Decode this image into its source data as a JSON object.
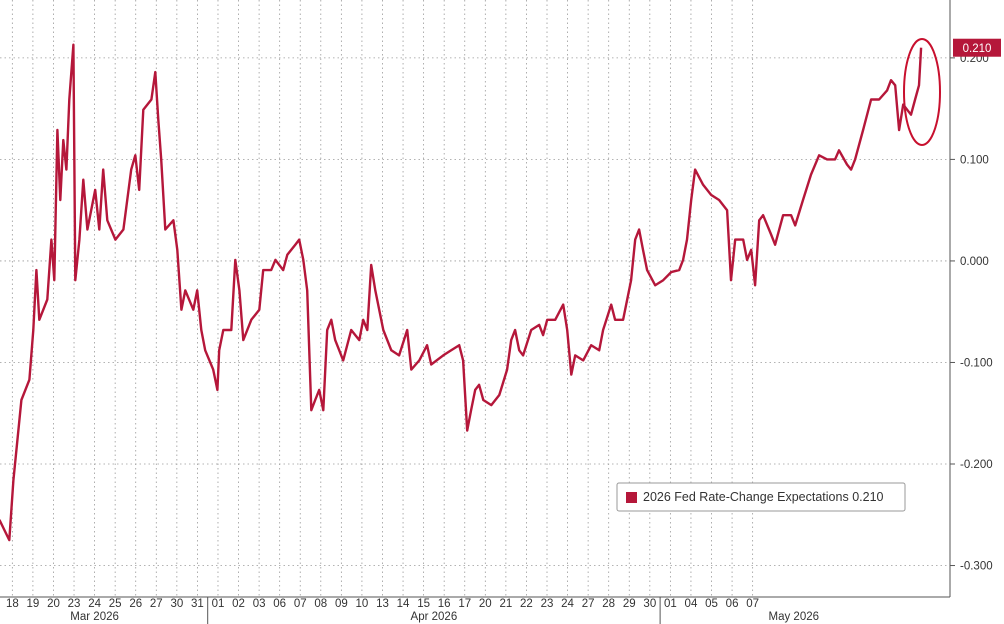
{
  "chart_data": {
    "type": "line",
    "series": [
      {
        "name": "2026 Fed Rate-Change Expectations",
        "color": "#b5173a",
        "x": [
          -0.63,
          -0.15,
          0.05,
          0.44,
          0.83,
          1.02,
          1.17,
          1.31,
          1.7,
          1.9,
          2.04,
          2.19,
          2.33,
          2.48,
          2.63,
          2.77,
          2.97,
          3.06,
          3.26,
          3.45,
          3.65,
          4.03,
          4.23,
          4.42,
          4.62,
          5.01,
          5.4,
          5.78,
          5.98,
          6.17,
          6.37,
          6.76,
          6.95,
          7.1,
          7.24,
          7.44,
          7.83,
          8.02,
          8.22,
          8.41,
          8.8,
          8.99,
          9.19,
          9.38,
          9.77,
          9.97,
          10.06,
          10.26,
          10.65,
          10.84,
          11.04,
          11.23,
          11.62,
          12.01,
          12.2,
          12.59,
          12.79,
          13.17,
          13.37,
          13.76,
          13.95,
          14.15,
          14.34,
          14.54,
          14.73,
          14.92,
          15.12,
          15.31,
          15.51,
          15.7,
          16.09,
          16.48,
          16.87,
          17.06,
          17.26,
          17.45,
          17.65,
          18.04,
          18.43,
          18.81,
          19.2,
          19.4,
          19.79,
          20.17,
          20.37,
          20.95,
          21.34,
          21.73,
          21.92,
          22.12,
          22.31,
          22.51,
          22.7,
          22.9,
          23.29,
          23.68,
          24.06,
          24.26,
          24.45,
          24.65,
          24.84,
          25.23,
          25.62,
          25.81,
          26.01,
          26.4,
          26.79,
          26.98,
          27.18,
          27.37,
          27.76,
          28.15,
          28.54,
          28.73,
          29.12,
          29.31,
          29.7,
          29.9,
          30.09,
          30.29,
          30.48,
          30.67,
          30.87,
          31.26,
          31.65,
          32.04,
          32.43,
          32.62,
          32.81,
          33.01,
          33.2,
          33.59,
          33.98,
          34.37,
          34.76,
          34.95,
          35.15,
          35.54,
          35.73,
          35.93,
          36.12,
          36.32,
          36.51,
          36.9,
          37.09,
          37.48,
          37.87,
          38.07,
          38.45,
          38.84,
          39.23,
          39.62,
          40.01,
          40.2,
          40.59,
          40.79,
          40.98,
          41.37,
          41.76,
          42.15,
          42.54,
          42.73,
          42.93,
          43.12,
          43.32,
          43.7,
          43.9,
          44.09,
          44.19
        ],
        "values": [
          -0.255,
          -0.275,
          -0.216,
          -0.137,
          -0.117,
          -0.068,
          -0.009,
          -0.058,
          -0.038,
          0.021,
          -0.019,
          0.129,
          0.06,
          0.119,
          0.09,
          0.159,
          0.213,
          -0.019,
          0.021,
          0.08,
          0.031,
          0.07,
          0.031,
          0.09,
          0.04,
          0.021,
          0.031,
          0.09,
          0.104,
          0.07,
          0.149,
          0.159,
          0.186,
          0.139,
          0.1,
          0.031,
          0.04,
          0.011,
          -0.048,
          -0.029,
          -0.048,
          -0.029,
          -0.068,
          -0.088,
          -0.107,
          -0.127,
          -0.088,
          -0.068,
          -0.068,
          0.001,
          -0.029,
          -0.078,
          -0.058,
          -0.048,
          -0.009,
          -0.009,
          0.001,
          -0.009,
          0.006,
          0.016,
          0.021,
          0.001,
          -0.029,
          -0.147,
          -0.137,
          -0.127,
          -0.147,
          -0.068,
          -0.058,
          -0.078,
          -0.098,
          -0.068,
          -0.078,
          -0.058,
          -0.068,
          -0.004,
          -0.029,
          -0.068,
          -0.088,
          -0.093,
          -0.068,
          -0.107,
          -0.098,
          -0.083,
          -0.102,
          -0.093,
          -0.088,
          -0.083,
          -0.098,
          -0.167,
          -0.147,
          -0.127,
          -0.122,
          -0.137,
          -0.142,
          -0.132,
          -0.107,
          -0.078,
          -0.068,
          -0.088,
          -0.093,
          -0.068,
          -0.063,
          -0.073,
          -0.058,
          -0.058,
          -0.043,
          -0.068,
          -0.112,
          -0.093,
          -0.098,
          -0.083,
          -0.088,
          -0.068,
          -0.043,
          -0.058,
          -0.058,
          -0.038,
          -0.019,
          0.021,
          0.031,
          0.011,
          -0.009,
          -0.024,
          -0.019,
          -0.011,
          -0.009,
          0.001,
          0.021,
          0.06,
          0.09,
          0.075,
          0.065,
          0.06,
          0.05,
          -0.019,
          0.021,
          0.021,
          0.001,
          0.011,
          -0.024,
          0.04,
          0.045,
          0.026,
          0.016,
          0.045,
          0.045,
          0.035,
          0.06,
          0.085,
          0.104,
          0.1,
          0.1,
          0.109,
          0.095,
          0.09,
          0.1,
          0.129,
          0.159,
          0.159,
          0.168,
          0.178,
          0.173,
          0.129,
          0.154,
          0.144,
          0.159,
          0.173,
          0.21
        ]
      }
    ],
    "last_value": {
      "value": 0.21,
      "label": "0.210"
    },
    "xlim": [
      -0.6,
      45.5
    ],
    "xticks": [
      {
        "value": 0,
        "label": "18"
      },
      {
        "value": 1,
        "label": "19"
      },
      {
        "value": 2,
        "label": "20"
      },
      {
        "value": 3,
        "label": "23"
      },
      {
        "value": 4,
        "label": "24"
      },
      {
        "value": 5,
        "label": "25"
      },
      {
        "value": 6,
        "label": "26"
      },
      {
        "value": 7,
        "label": "27"
      },
      {
        "value": 8,
        "label": "30"
      },
      {
        "value": 9,
        "label": "31"
      },
      {
        "value": 10,
        "label": "01"
      },
      {
        "value": 11,
        "label": "02"
      },
      {
        "value": 12,
        "label": "03"
      },
      {
        "value": 13,
        "label": "06"
      },
      {
        "value": 14,
        "label": "07"
      },
      {
        "value": 15,
        "label": "08"
      },
      {
        "value": 16,
        "label": "09"
      },
      {
        "value": 17,
        "label": "10"
      },
      {
        "value": 18,
        "label": "13"
      },
      {
        "value": 19,
        "label": "14"
      },
      {
        "value": 20,
        "label": "15"
      },
      {
        "value": 21,
        "label": "16"
      },
      {
        "value": 22,
        "label": "17"
      },
      {
        "value": 23,
        "label": "20"
      },
      {
        "value": 24,
        "label": "21"
      },
      {
        "value": 25,
        "label": "22"
      },
      {
        "value": 26,
        "label": "23"
      },
      {
        "value": 27,
        "label": "24"
      },
      {
        "value": 28,
        "label": "27"
      },
      {
        "value": 29,
        "label": "28"
      },
      {
        "value": 30,
        "label": "29"
      },
      {
        "value": 31,
        "label": "30"
      },
      {
        "value": 32,
        "label": "01"
      },
      {
        "value": 33,
        "label": "04"
      },
      {
        "value": 34,
        "label": "05"
      },
      {
        "value": 35,
        "label": "06"
      },
      {
        "value": 36,
        "label": "07"
      }
    ],
    "month_labels": [
      {
        "value": 4.0,
        "label": "Mar 2026"
      },
      {
        "value": 20.5,
        "label": "Apr 2026"
      },
      {
        "value": 38.0,
        "label": "May 2026"
      }
    ],
    "month_bounds": [
      9.5,
      31.5
    ],
    "ylim": [
      -0.331,
      0.257
    ],
    "yticks": [
      {
        "value": 0.2,
        "label": "0.200"
      },
      {
        "value": 0.1,
        "label": "0.100"
      },
      {
        "value": 0,
        "label": "0.000"
      },
      {
        "value": -0.1,
        "label": "-0.100"
      },
      {
        "value": -0.2,
        "label": "-0.200"
      },
      {
        "value": -0.3,
        "label": "-0.300"
      }
    ],
    "grid": true,
    "legend": "lower right"
  }
}
